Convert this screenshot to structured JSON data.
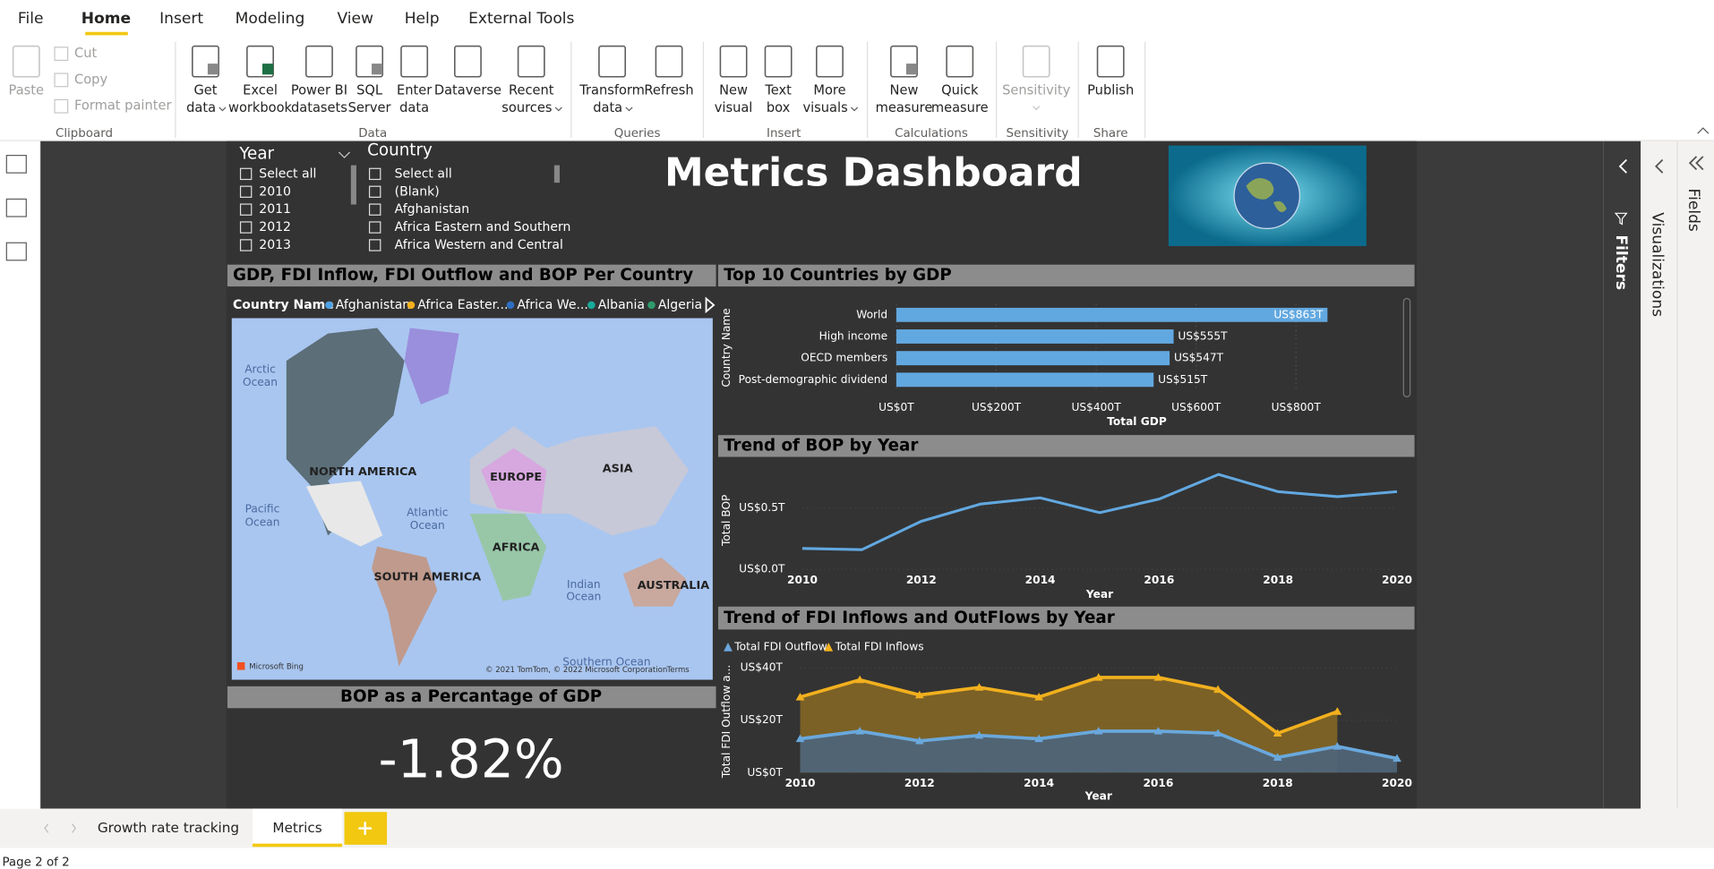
{
  "ribbon": {
    "tabs": [
      "File",
      "Home",
      "Insert",
      "Modeling",
      "View",
      "Help",
      "External Tools"
    ],
    "buttons": [
      [
        "Paste"
      ],
      [
        "Get",
        "data"
      ],
      [
        "Excel",
        "workbook"
      ],
      [
        "Power BI",
        "datasets"
      ],
      [
        "SQL",
        "Server"
      ],
      [
        "Enter",
        "data"
      ],
      [
        "Dataverse"
      ],
      [
        "Recent",
        "sources"
      ],
      [
        "Transform",
        "data"
      ],
      [
        "Refresh"
      ],
      [
        "New",
        "visual"
      ],
      [
        "Text",
        "box"
      ],
      [
        "More",
        "visuals"
      ],
      [
        "New",
        "measure"
      ],
      [
        "Quick",
        "measure"
      ],
      [
        "Sensitivity"
      ],
      [
        "Publish"
      ]
    ],
    "small": [
      "Cut",
      "Copy",
      "Format painter"
    ],
    "groups": [
      "Clipboard",
      "Data",
      "Queries",
      "Insert",
      "Calculations",
      "Sensitivity",
      "Share"
    ]
  },
  "slicers": [
    {
      "title": "Year",
      "items": [
        "Select all",
        "2010",
        "2011",
        "2012",
        "2013"
      ]
    },
    {
      "title": "Country",
      "items": [
        "Select all",
        "(Blank)",
        "Afghanistan",
        "Africa Eastern and Southern",
        "Africa Western and Central"
      ]
    }
  ],
  "title": "Metrics Dashboard",
  "map": {
    "title": "GDP, FDI Inflow, FDI Outflow and BOP Per Country",
    "legend_title": "Country Name",
    "legend": [
      {
        "name": "Afghanistan",
        "color": "#4ea1e3"
      },
      {
        "name": "Africa Easter...",
        "color": "#f2b01e"
      },
      {
        "name": "Africa We...",
        "color": "#2f6fc2"
      },
      {
        "name": "Albania",
        "color": "#1aab9b"
      },
      {
        "name": "Algeria",
        "color": "#2f9b6b"
      }
    ],
    "labels": [
      "Arctic",
      "Ocean",
      "Pacific",
      "Ocean",
      "Atlantic",
      "Ocean",
      "Indian",
      "Ocean",
      "Southern Ocean",
      "NORTH AMERICA",
      "EUROPE",
      "ASIA",
      "AFRICA",
      "SOUTH AMERICA",
      "AUSTRALIA"
    ],
    "credits": [
      "Microsoft Bing",
      "© 2021 TomTom, © 2022 Microsoft Corporation",
      "Terms"
    ]
  },
  "charts": [
    {
      "type": "bar",
      "title": "Top 10 Countries by GDP",
      "y_label": "Country Name",
      "x_label": "Total GDP",
      "categories": [
        "World",
        "High income",
        "OECD members",
        "Post-demographic dividend"
      ],
      "values": [
        863,
        555,
        547,
        515
      ],
      "value_labels": [
        "US$863T",
        "US$555T",
        "US$547T",
        "US$515T"
      ],
      "color": "#62a8e0",
      "xlim": [
        0,
        1000
      ],
      "xticks": [
        {
          "value": 0,
          "label": "US$0T"
        },
        {
          "value": 200,
          "label": "US$200T"
        },
        {
          "value": 400,
          "label": "US$400T"
        },
        {
          "value": 600,
          "label": "US$600T"
        },
        {
          "value": 800,
          "label": "US$800T"
        }
      ],
      "grid": true
    },
    {
      "type": "line",
      "title": "Trend of BOP by Year",
      "y_label": "Total BOP",
      "x_label": "Year",
      "x": [
        2010,
        2011,
        2012,
        2013,
        2014,
        2015,
        2016,
        2017,
        2018,
        2019,
        2020
      ],
      "series": [
        {
          "name": null,
          "color": "#62a8e0",
          "values": [
            0.17,
            0.16,
            0.39,
            0.53,
            0.58,
            0.46,
            0.57,
            0.77,
            0.63,
            0.59,
            0.63
          ]
        }
      ],
      "xlim": [
        2010,
        2020
      ],
      "xticks": [
        2010,
        2012,
        2014,
        2016,
        2018,
        2020
      ],
      "ylim": [
        0,
        0.85
      ],
      "yticks": [
        {
          "value": 0,
          "label": "US$0.0T"
        },
        {
          "value": 0.5,
          "label": "US$0.5T"
        }
      ]
    },
    {
      "type": "area",
      "title": "Trend of FDI Inflows and OutFlows by Year",
      "y_label": "Total FDI Outflow a...",
      "x_label": "Year",
      "x": [
        2010,
        2011,
        2012,
        2013,
        2014,
        2015,
        2016,
        2017,
        2018,
        2019,
        2020
      ],
      "series": [
        {
          "name": "Total FDI Outflow",
          "color": "#6aa8dc",
          "fill": "#4f6477",
          "values": [
            12.9,
            15.8,
            12.1,
            14.2,
            12.9,
            15.8,
            15.8,
            15.0,
            5.8,
            10.0,
            5.4
          ]
        },
        {
          "name": "Total FDI Inflows",
          "color": "#f2b01e",
          "fill": "#806426",
          "values": [
            28.8,
            35.4,
            29.6,
            32.5,
            28.8,
            36.3,
            36.3,
            31.7,
            15.0,
            23.3,
            null
          ]
        }
      ],
      "xlim": [
        2010,
        2020
      ],
      "xticks": [
        2010,
        2012,
        2014,
        2016,
        2018,
        2020
      ],
      "ylim": [
        0,
        40
      ],
      "yticks": [
        {
          "value": 0,
          "label": "US$0T"
        },
        {
          "value": 20,
          "label": "US$20T"
        },
        {
          "value": 40,
          "label": "US$40T"
        }
      ],
      "legend": "top-left"
    }
  ],
  "card": {
    "title": "BOP as a Percantage of GDP",
    "value": "-1.82%"
  },
  "panes": [
    "Filters",
    "Visualizations",
    "Fields"
  ],
  "pages": [
    "Growth rate tracking",
    "Metrics"
  ],
  "status": "Page 2 of 2"
}
